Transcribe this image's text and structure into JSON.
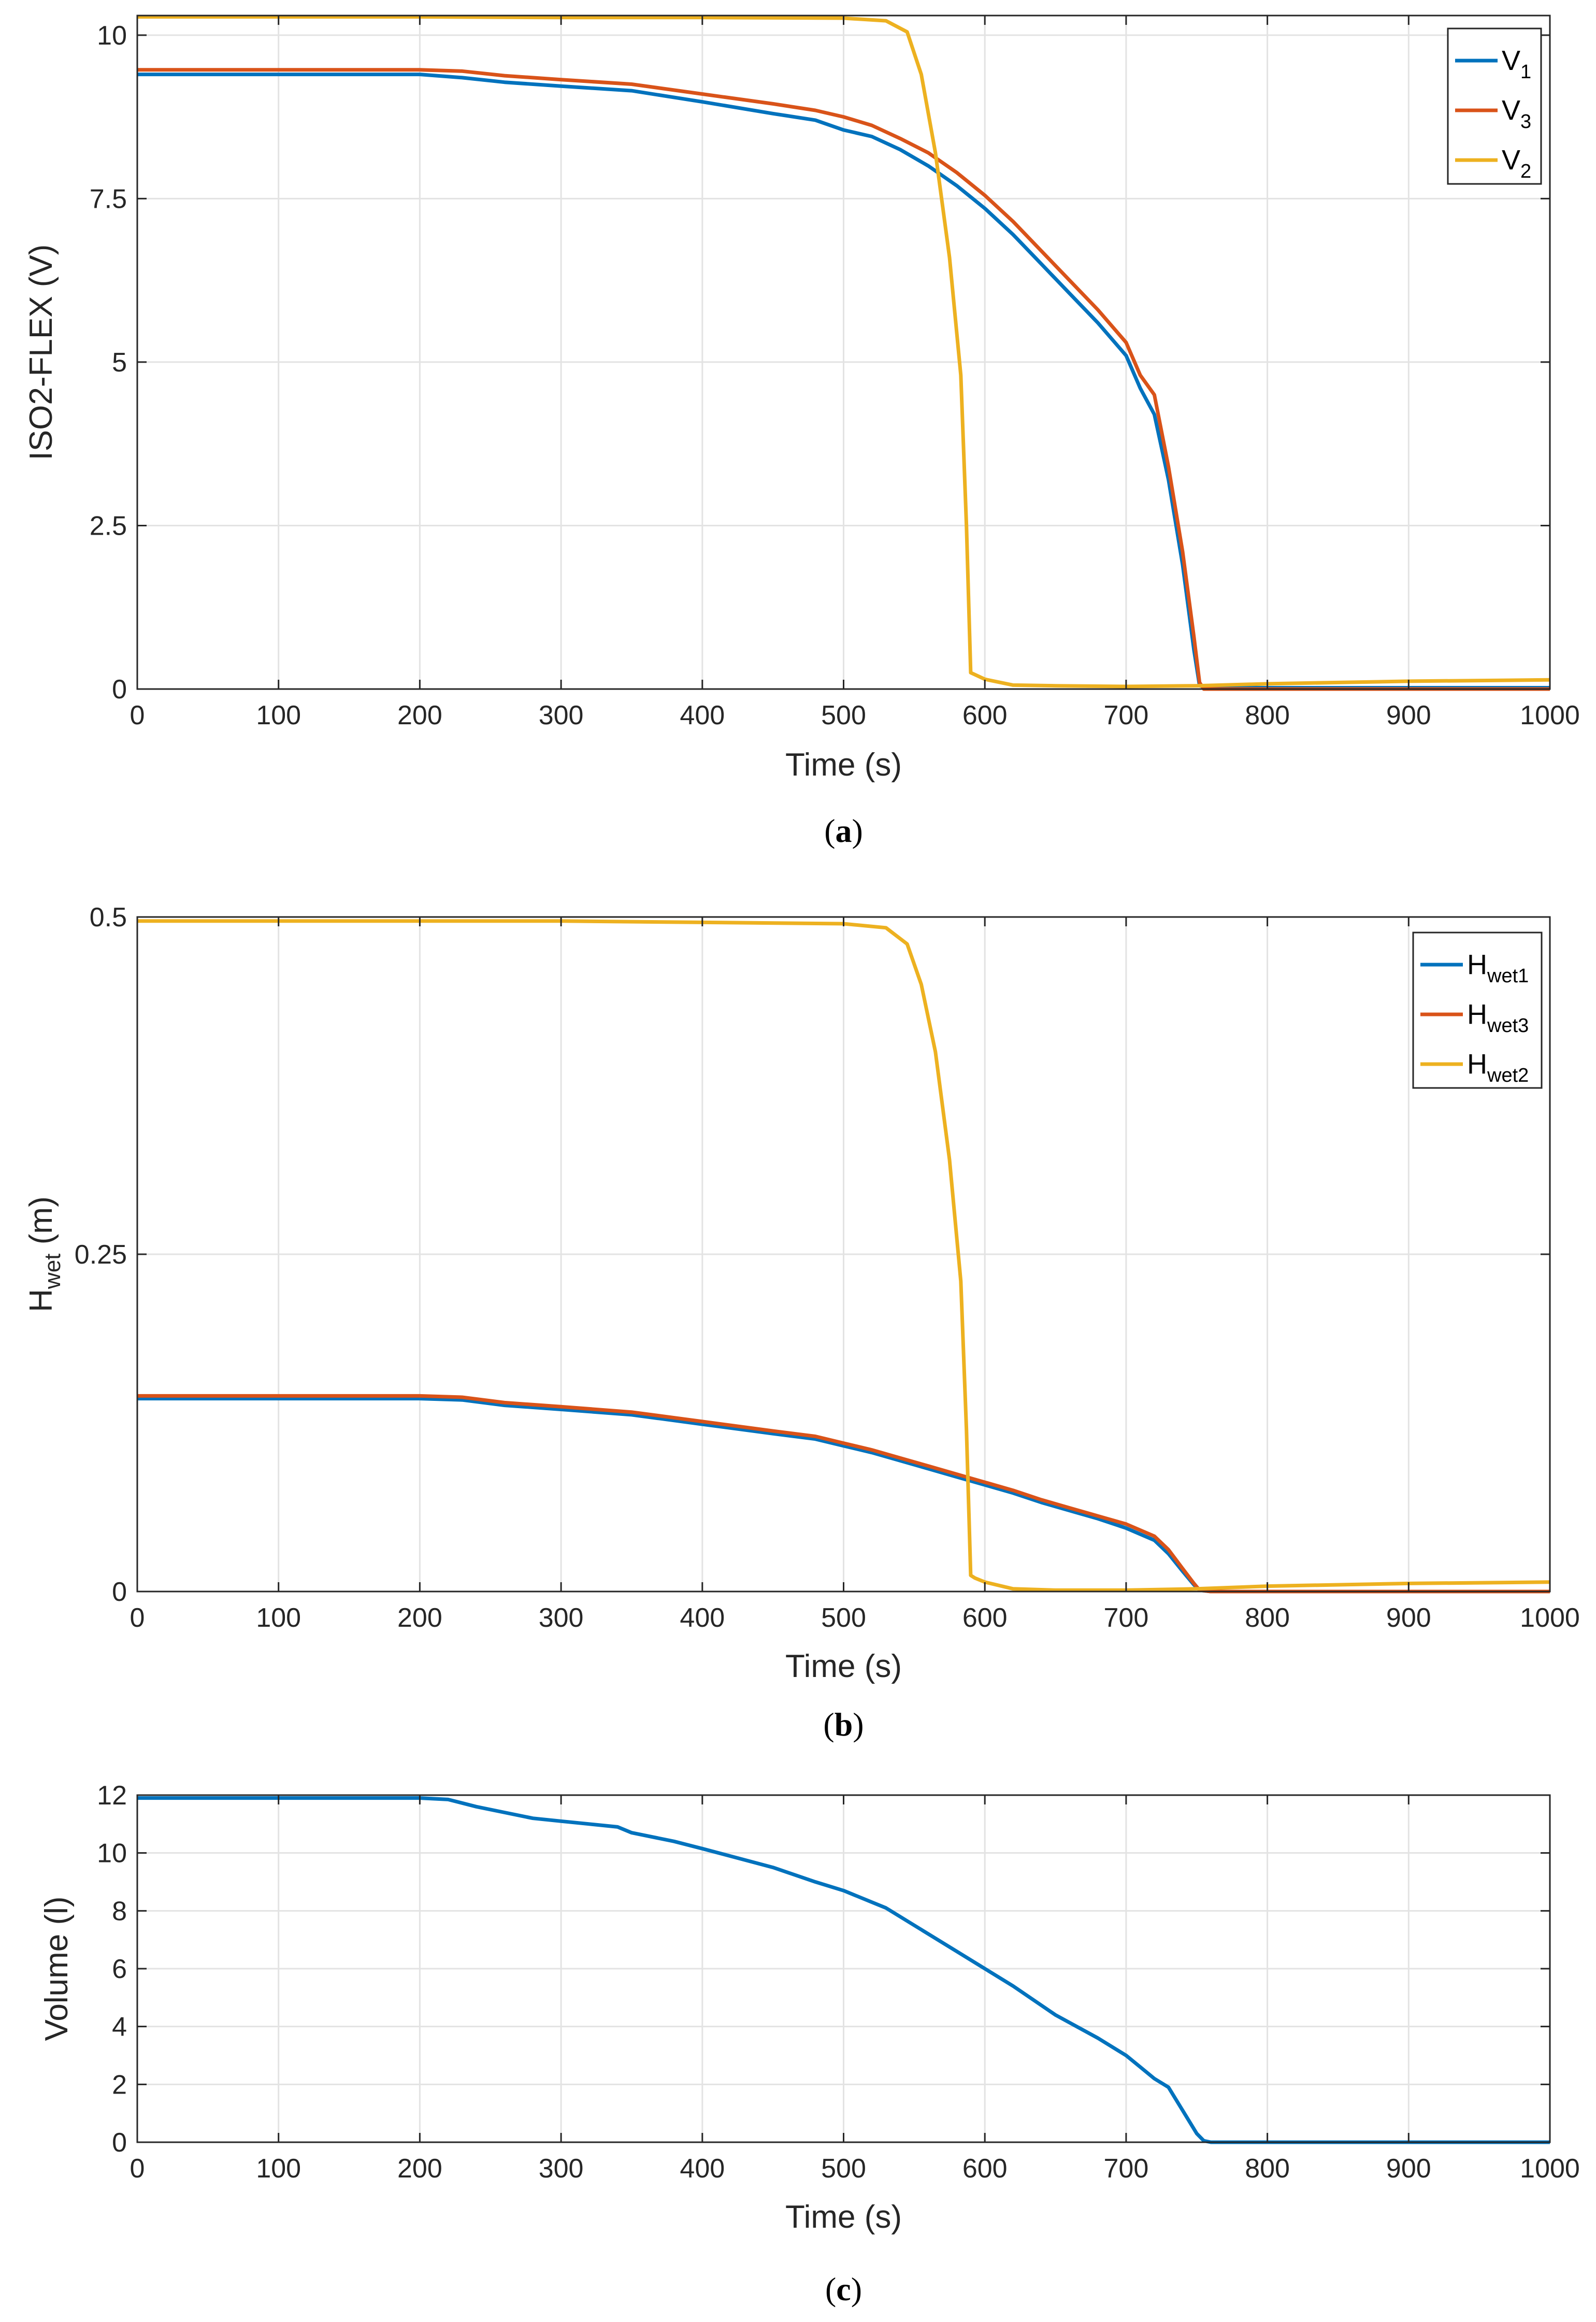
{
  "colors": {
    "v1": "#0072BD",
    "v3": "#D95319",
    "v2": "#EDB120"
  },
  "chart_data": [
    {
      "id": "a",
      "type": "line",
      "caption": {
        "open": "(",
        "letter": "a",
        "close": ")"
      },
      "xlabel": "Time (s)",
      "ylabel": "ISO2-FLEX (V)",
      "xlim": [
        0,
        1000
      ],
      "ylim": [
        0,
        10.3
      ],
      "xticks": [
        0,
        100,
        200,
        300,
        400,
        500,
        600,
        700,
        800,
        900,
        1000
      ],
      "yticks": [
        0,
        2.5,
        5,
        7.5,
        10
      ],
      "ytick_labels": [
        "0",
        "2.5",
        "5",
        "7.5",
        "10"
      ],
      "legend_position": "top-right",
      "series": [
        {
          "name": "V",
          "sub": "1",
          "color_key": "v1",
          "x": [
            0,
            100,
            200,
            230,
            260,
            300,
            350,
            400,
            450,
            480,
            500,
            520,
            540,
            560,
            580,
            600,
            620,
            640,
            660,
            680,
            700,
            710,
            720,
            730,
            740,
            748,
            752,
            760,
            800,
            900,
            1000
          ],
          "y": [
            9.4,
            9.4,
            9.4,
            9.35,
            9.28,
            9.22,
            9.15,
            8.98,
            8.8,
            8.7,
            8.55,
            8.45,
            8.25,
            8.0,
            7.7,
            7.35,
            6.95,
            6.5,
            6.05,
            5.6,
            5.1,
            4.6,
            4.2,
            3.2,
            1.9,
            0.6,
            0.05,
            0.02,
            0.02,
            0.02,
            0.02
          ]
        },
        {
          "name": "V",
          "sub": "3",
          "color_key": "v3",
          "x": [
            0,
            100,
            200,
            230,
            260,
            300,
            350,
            400,
            450,
            480,
            500,
            520,
            540,
            560,
            580,
            600,
            620,
            640,
            660,
            680,
            700,
            710,
            720,
            730,
            740,
            748,
            752,
            755,
            760,
            800,
            900,
            1000
          ],
          "y": [
            9.47,
            9.47,
            9.47,
            9.45,
            9.38,
            9.32,
            9.25,
            9.1,
            8.95,
            8.85,
            8.75,
            8.62,
            8.42,
            8.2,
            7.9,
            7.55,
            7.15,
            6.7,
            6.25,
            5.8,
            5.3,
            4.8,
            4.5,
            3.4,
            2.1,
            0.8,
            0.1,
            0.0,
            0.0,
            0.0,
            0.0,
            0.0
          ]
        },
        {
          "name": "V",
          "sub": "2",
          "color_key": "v2",
          "x": [
            0,
            100,
            200,
            300,
            400,
            500,
            530,
            545,
            555,
            565,
            575,
            583,
            587,
            590,
            593,
            600,
            620,
            650,
            700,
            750,
            800,
            900,
            1000
          ],
          "y": [
            10.28,
            10.28,
            10.28,
            10.27,
            10.27,
            10.26,
            10.22,
            10.05,
            9.4,
            8.2,
            6.6,
            4.8,
            2.5,
            0.25,
            0.22,
            0.15,
            0.06,
            0.05,
            0.04,
            0.05,
            0.08,
            0.12,
            0.14
          ]
        }
      ]
    },
    {
      "id": "b",
      "type": "line",
      "caption": {
        "open": "(",
        "letter": "b",
        "close": ")"
      },
      "xlabel": "Time (s)",
      "ylabel": "H",
      "ylabel_sub": "wet",
      "ylabel_unit": " (m)",
      "xlim": [
        0,
        1000
      ],
      "ylim": [
        0,
        0.5
      ],
      "xticks": [
        0,
        100,
        200,
        300,
        400,
        500,
        600,
        700,
        800,
        900,
        1000
      ],
      "yticks": [
        0,
        0.25,
        0.5
      ],
      "ytick_labels": [
        "0",
        "0.25",
        "0.5"
      ],
      "legend_position": "top-right",
      "series": [
        {
          "name": "H",
          "sub": "wet1",
          "color_key": "v1",
          "x": [
            0,
            100,
            200,
            230,
            260,
            300,
            350,
            400,
            450,
            480,
            500,
            520,
            540,
            560,
            580,
            600,
            620,
            640,
            660,
            680,
            700,
            720,
            730,
            740,
            748,
            752,
            760,
            800,
            900,
            1000
          ],
          "y": [
            0.143,
            0.143,
            0.143,
            0.142,
            0.138,
            0.135,
            0.131,
            0.124,
            0.117,
            0.113,
            0.108,
            0.103,
            0.097,
            0.091,
            0.085,
            0.079,
            0.073,
            0.066,
            0.06,
            0.054,
            0.047,
            0.038,
            0.028,
            0.015,
            0.005,
            0.001,
            0.0,
            0.0,
            0.0,
            0.0
          ]
        },
        {
          "name": "H",
          "sub": "wet3",
          "color_key": "v3",
          "x": [
            0,
            100,
            200,
            230,
            260,
            300,
            350,
            400,
            450,
            480,
            500,
            520,
            540,
            560,
            580,
            600,
            620,
            640,
            660,
            680,
            700,
            720,
            730,
            740,
            748,
            752,
            760,
            800,
            900,
            1000
          ],
          "y": [
            0.145,
            0.145,
            0.145,
            0.144,
            0.14,
            0.137,
            0.133,
            0.126,
            0.119,
            0.115,
            0.11,
            0.105,
            0.099,
            0.093,
            0.087,
            0.081,
            0.075,
            0.068,
            0.062,
            0.056,
            0.05,
            0.041,
            0.031,
            0.017,
            0.006,
            0.001,
            0.0,
            0.0,
            0.0,
            0.0
          ]
        },
        {
          "name": "H",
          "sub": "wet2",
          "color_key": "v2",
          "x": [
            0,
            100,
            200,
            300,
            400,
            500,
            530,
            545,
            555,
            565,
            575,
            583,
            587,
            590,
            593,
            600,
            620,
            650,
            700,
            750,
            800,
            900,
            1000
          ],
          "y": [
            0.497,
            0.497,
            0.497,
            0.497,
            0.496,
            0.495,
            0.492,
            0.48,
            0.45,
            0.4,
            0.32,
            0.23,
            0.12,
            0.012,
            0.01,
            0.007,
            0.002,
            0.001,
            0.001,
            0.002,
            0.004,
            0.006,
            0.007
          ]
        }
      ]
    },
    {
      "id": "c",
      "type": "line",
      "caption": {
        "open": "(",
        "letter": "c",
        "close": ")"
      },
      "xlabel": "Time (s)",
      "ylabel": "Volume (l)",
      "xlim": [
        0,
        1000
      ],
      "ylim": [
        0,
        12
      ],
      "xticks": [
        0,
        100,
        200,
        300,
        400,
        500,
        600,
        700,
        800,
        900,
        1000
      ],
      "yticks": [
        0,
        2,
        4,
        6,
        8,
        10,
        12
      ],
      "ytick_labels": [
        "0",
        "2",
        "4",
        "6",
        "8",
        "10",
        "12"
      ],
      "legend_position": "none",
      "series": [
        {
          "name": "Volume",
          "sub": "",
          "color_key": "v1",
          "x": [
            0,
            100,
            200,
            220,
            240,
            260,
            280,
            300,
            320,
            340,
            350,
            380,
            400,
            450,
            480,
            500,
            520,
            530,
            550,
            580,
            600,
            620,
            650,
            680,
            700,
            710,
            720,
            730,
            740,
            750,
            755,
            760,
            800,
            900,
            1000
          ],
          "y": [
            11.9,
            11.9,
            11.9,
            11.85,
            11.6,
            11.4,
            11.2,
            11.1,
            11.0,
            10.9,
            10.7,
            10.4,
            10.15,
            9.5,
            9.0,
            8.7,
            8.3,
            8.1,
            7.5,
            6.6,
            6.0,
            5.4,
            4.4,
            3.6,
            3.0,
            2.6,
            2.2,
            1.9,
            1.1,
            0.3,
            0.05,
            0.0,
            0.0,
            0.0,
            0.0
          ]
        }
      ]
    }
  ]
}
